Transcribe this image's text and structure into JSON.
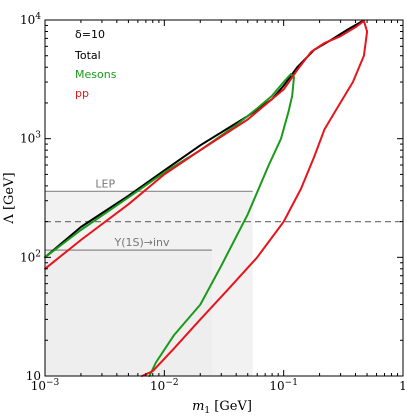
{
  "chart_data": {
    "type": "line",
    "xlabel_main": "m",
    "xlabel_sub": "1",
    "xlabel_unit": " [GeV]",
    "ylabel": "Λ [GeV]",
    "x_scale": "log",
    "y_scale": "log",
    "xlim": [
      0.001,
      1
    ],
    "ylim": [
      10,
      10000
    ],
    "x_ticks": [
      {
        "value": 0.001,
        "base": "10",
        "exp": "−3"
      },
      {
        "value": 0.01,
        "base": "10",
        "exp": "−2"
      },
      {
        "value": 0.1,
        "base": "10",
        "exp": "−1"
      },
      {
        "value": 1,
        "base": "1",
        "exp": ""
      }
    ],
    "y_ticks": [
      {
        "value": 10,
        "base": "10",
        "exp": ""
      },
      {
        "value": 100,
        "base": "10",
        "exp": "2"
      },
      {
        "value": 1000,
        "base": "10",
        "exp": "3"
      },
      {
        "value": 10000,
        "base": "10",
        "exp": "4"
      }
    ],
    "legend": {
      "header": "δ=10",
      "placement": "top-left",
      "entries": [
        {
          "label": "Total",
          "color": "#000000"
        },
        {
          "label": "Mesons",
          "color": "#1a9a1a"
        },
        {
          "label": "pp",
          "color": "#e8141c"
        }
      ]
    },
    "shaded_region": {
      "x": [
        0.001,
        0.025
      ],
      "y": [
        10,
        115
      ],
      "color": "#eeeeee"
    },
    "shaded_region_upper": {
      "x": [
        0.001,
        0.055
      ],
      "y": [
        10,
        360
      ],
      "color": "#f2f2f2"
    },
    "reference_lines": [
      {
        "label": "LEP",
        "y": 360,
        "x_range": [
          0.001,
          0.055
        ],
        "style": "solid",
        "color": "#888888"
      },
      {
        "label": "",
        "y": 200,
        "x_range": [
          0.001,
          1
        ],
        "style": "dashed",
        "color": "#777777"
      },
      {
        "label": "Υ(1S)→inv",
        "y": 115,
        "x_range": [
          0.001,
          0.025
        ],
        "style": "solid",
        "color": "#888888"
      }
    ],
    "series": [
      {
        "name": "Total",
        "color": "#000000",
        "width": 2,
        "x": [
          0.001,
          0.002,
          0.005,
          0.01,
          0.02,
          0.05,
          0.08,
          0.1,
          0.13,
          0.18,
          0.25,
          0.35,
          0.45,
          0.47
        ],
        "y": [
          100,
          180,
          330,
          540,
          880,
          1550,
          2150,
          2800,
          4000,
          5600,
          6800,
          8400,
          9700,
          9700
        ]
      },
      {
        "name": "Mesons",
        "color": "#1a9a1a",
        "width": 2,
        "x": [
          0.001,
          0.002,
          0.005,
          0.01,
          0.02,
          0.04,
          0.06,
          0.08,
          0.1,
          0.115,
          0.122,
          0.118,
          0.11,
          0.095,
          0.075,
          0.05,
          0.03,
          0.02,
          0.012,
          0.0085,
          0.0075
        ],
        "y": [
          100,
          170,
          320,
          520,
          800,
          1300,
          1800,
          2300,
          3000,
          3500,
          3300,
          2300,
          1700,
          1000,
          600,
          230,
          85,
          40,
          22,
          13,
          10
        ]
      },
      {
        "name": "pp",
        "color": "#e8141c",
        "width": 2,
        "x": [
          0.001,
          0.002,
          0.005,
          0.01,
          0.02,
          0.05,
          0.1,
          0.13,
          0.17,
          0.22,
          0.3,
          0.4,
          0.47,
          0.5,
          0.47,
          0.38,
          0.28,
          0.22,
          0.18,
          0.14,
          0.1,
          0.06,
          0.035,
          0.02,
          0.012,
          0.008,
          0.0065
        ],
        "y": [
          80,
          140,
          280,
          500,
          800,
          1450,
          2600,
          3800,
          5400,
          6400,
          7300,
          8700,
          9800,
          8000,
          5000,
          3000,
          1800,
          1200,
          700,
          380,
          200,
          100,
          55,
          30,
          17,
          11,
          10
        ]
      }
    ]
  }
}
